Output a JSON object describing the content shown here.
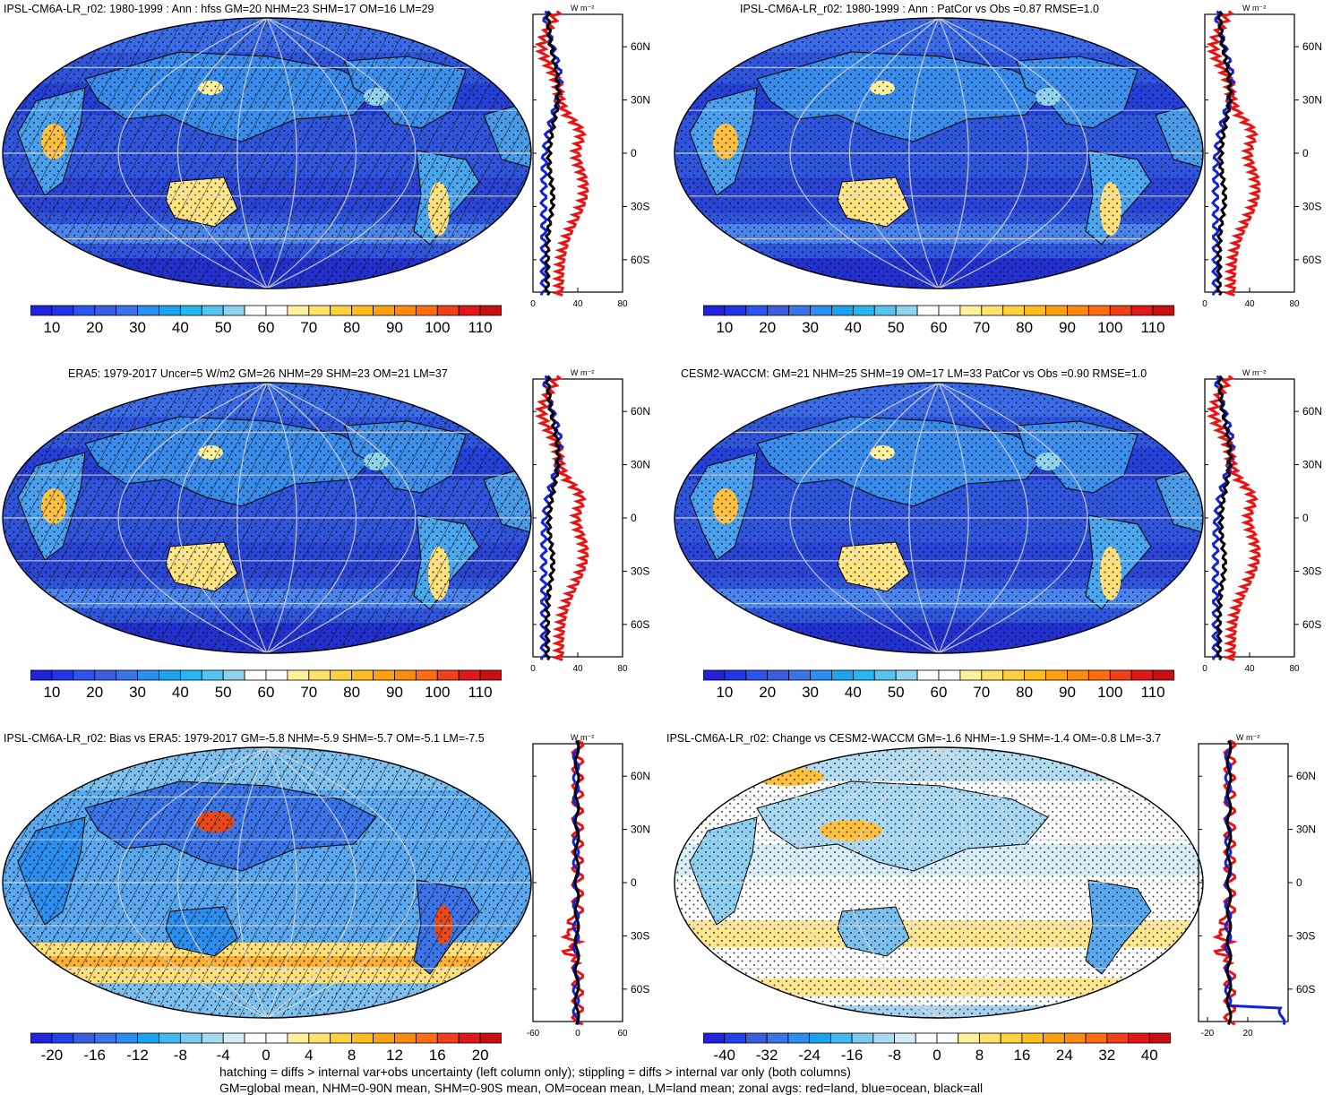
{
  "footer": {
    "line1": "hatching = diffs > internal var+obs uncertainty (left column only); stippling = diffs > internal var only (both columns)",
    "line2": "GM=global mean, NHM=0-90N mean, SHM=0-90S mean, OM=ocean mean, LM=land mean; zonal avgs: red=land, blue=ocean, black=all"
  },
  "units_label": "W m⁻²",
  "lat_labels": [
    "60N",
    "30N",
    "0",
    "30S",
    "60S"
  ],
  "zonal_colors": {
    "land": "#ee1111",
    "ocean": "#1122dd",
    "all": "#000000"
  },
  "panels": [
    {
      "title": "IPSL-CM6A-LR_r02: 1980-1999 : Ann : hfss GM=20 NHM=23 SHM=17 OM=16 LM=29",
      "colorbar_labels": [
        "10",
        "20",
        "30",
        "40",
        "50",
        "60",
        "70",
        "80",
        "90",
        "100",
        "110"
      ],
      "zonal_ticks": [
        "0",
        "40",
        "80"
      ],
      "hatched": true
    },
    {
      "title": "IPSL-CM6A-LR_r02: 1980-1999 : Ann : PatCor vs Obs =0.87 RMSE=1.0",
      "colorbar_labels": [
        "10",
        "20",
        "30",
        "40",
        "50",
        "60",
        "70",
        "80",
        "90",
        "100",
        "110"
      ],
      "zonal_ticks": [
        "0",
        "40",
        "80"
      ],
      "hatched": false
    },
    {
      "title": "ERA5: 1979-2017 Uncer=5 W/m2 GM=26 NHM=29 SHM=23 OM=21 LM=37",
      "colorbar_labels": [
        "10",
        "20",
        "30",
        "40",
        "50",
        "60",
        "70",
        "80",
        "90",
        "100",
        "110"
      ],
      "zonal_ticks": [
        "0",
        "40",
        "80"
      ],
      "hatched": true
    },
    {
      "title": "CESM2-WACCM: GM=21 NHM=25 SHM=19 OM=17 LM=33 PatCor vs Obs =0.90 RMSE=1.0",
      "colorbar_labels": [
        "10",
        "20",
        "30",
        "40",
        "50",
        "60",
        "70",
        "80",
        "90",
        "100",
        "110"
      ],
      "zonal_ticks": [
        "0",
        "40",
        "80"
      ],
      "hatched": false
    },
    {
      "title": "IPSL-CM6A-LR_r02: Bias vs ERA5: 1979-2017 GM=-5.8 NHM=-5.9 SHM=-5.7 OM=-5.1 LM=-7.5",
      "colorbar_labels": [
        "-20",
        "-16",
        "-12",
        "-8",
        "-4",
        "0",
        "4",
        "8",
        "12",
        "16",
        "20"
      ],
      "zonal_ticks": [
        "-60",
        "0",
        "60"
      ],
      "hatched": true
    },
    {
      "title": "IPSL-CM6A-LR_r02: Change vs CESM2-WACCM GM=-1.6 NHM=-1.9 SHM=-1.4 OM=-0.8 LM=-3.7",
      "colorbar_labels": [
        "-40",
        "-32",
        "-24",
        "-16",
        "-8",
        "0",
        "8",
        "16",
        "24",
        "32",
        "40"
      ],
      "zonal_ticks": [
        "-20",
        "20"
      ],
      "hatched": false
    }
  ],
  "colorbar_palettes": {
    "positive": [
      "#2222dd",
      "#1f35e6",
      "#2a55ee",
      "#3b5fe0",
      "#3a74e8",
      "#2c8ef0",
      "#1ca4f0",
      "#28b6f0",
      "#55c4ee",
      "#8fd3ee",
      "#ffffff",
      "#ffffff",
      "#fff29a",
      "#ffe26a",
      "#ffd040",
      "#ffbd20",
      "#ffa010",
      "#ff8a10",
      "#ff6d10",
      "#f0401a",
      "#e01818",
      "#c81010"
    ],
    "diverging": [
      "#2222dd",
      "#2040e8",
      "#3a5ee0",
      "#3b74ea",
      "#2c8ef0",
      "#1aa4f0",
      "#45b8ee",
      "#7bcaee",
      "#a8daf0",
      "#d4ecf6",
      "#ffffff",
      "#ffffff",
      "#fff29a",
      "#ffe26a",
      "#ffd040",
      "#ffbd20",
      "#ffa010",
      "#ff8a10",
      "#ff6d10",
      "#f0401a",
      "#e01818",
      "#c81010"
    ]
  }
}
